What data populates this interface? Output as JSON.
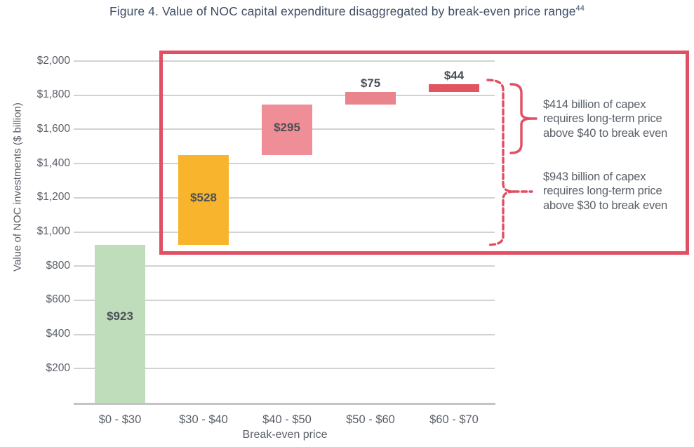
{
  "title": {
    "text": "Figure 4. Value of NOC capital expenditure disaggregated by break-even price range",
    "superscript": "44"
  },
  "chart_data": {
    "type": "bar",
    "subtype": "waterfall",
    "title": "Figure 4. Value of NOC capital expenditure disaggregated by break-even price range",
    "xlabel": "Break-even price",
    "ylabel": "Value of NOC investments ($ billion)",
    "categories": [
      "$0 - $30",
      "$30 - $40",
      "$40 - $50",
      "$50 - $60",
      "$60 - $70"
    ],
    "values": [
      923,
      528,
      295,
      75,
      44
    ],
    "cumulative_start": [
      0,
      923,
      1451,
      1746,
      1821
    ],
    "bar_labels": [
      "$923",
      "$528",
      "$295",
      "$75",
      "$44"
    ],
    "bar_colors": [
      "#BFDCBB",
      "#F8B42D",
      "#EF8E96",
      "#E9838C",
      "#E15560"
    ],
    "label_placement": [
      "inside",
      "inside",
      "inside",
      "above",
      "above"
    ],
    "ylim": [
      0,
      2000
    ],
    "ytick_step": 200,
    "ytick_labels": [
      "$200",
      "$400",
      "$600",
      "$800",
      "$1,000",
      "$1,200",
      "$1,400",
      "$1,600",
      "$1,800",
      "$2,000"
    ],
    "grid": true,
    "legend": false
  },
  "annotations": {
    "highlight_box": {
      "color": "#E04F63",
      "covers_categories": [
        "$30 - $40",
        "$40 - $50",
        "$50 - $60",
        "$60 - $70"
      ]
    },
    "bracket_solid": {
      "style": "solid",
      "color": "#E04F63",
      "text_lines": [
        "$414 billion of capex",
        "requires long-term price",
        "above $40 to break even"
      ]
    },
    "bracket_dashed": {
      "style": "dashed",
      "color": "#E04F63",
      "text_lines": [
        "$943 billion of capex",
        "requires long-term price",
        "above $30 to break even"
      ]
    }
  }
}
